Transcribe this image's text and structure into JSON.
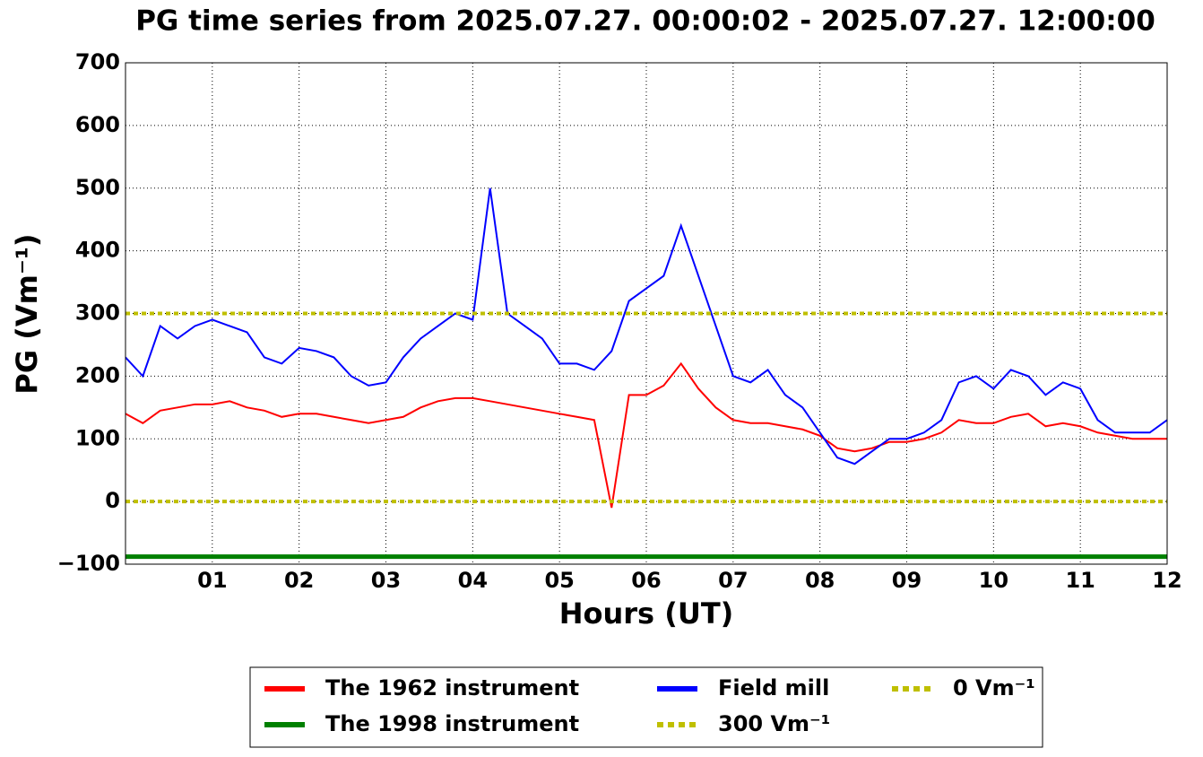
{
  "chart_data": {
    "type": "line",
    "title": "PG time series from 2025.07.27. 00:00:02 - 2025.07.27. 12:00:00",
    "x_label": "Hours (UT)",
    "y_label": "PG (Vm⁻¹)",
    "xlim": [
      0,
      12
    ],
    "xticks": [
      {
        "value": 1,
        "label": "01"
      },
      {
        "value": 2,
        "label": "02"
      },
      {
        "value": 3,
        "label": "03"
      },
      {
        "value": 4,
        "label": "04"
      },
      {
        "value": 5,
        "label": "05"
      },
      {
        "value": 6,
        "label": "06"
      },
      {
        "value": 7,
        "label": "07"
      },
      {
        "value": 8,
        "label": "08"
      },
      {
        "value": 9,
        "label": "09"
      },
      {
        "value": 10,
        "label": "10"
      },
      {
        "value": 11,
        "label": "11"
      },
      {
        "value": 12,
        "label": "12"
      }
    ],
    "ylim": [
      -100,
      700
    ],
    "yticks": [
      {
        "value": -100,
        "label": "−100"
      },
      0,
      100,
      200,
      300,
      400,
      500,
      600,
      700
    ],
    "grid": true,
    "legend": "lower center",
    "x": [
      0,
      0.2,
      0.4,
      0.6,
      0.8,
      1,
      1.2,
      1.4,
      1.6,
      1.8,
      2,
      2.2,
      2.4,
      2.6,
      2.8,
      3,
      3.2,
      3.4,
      3.6,
      3.8,
      4,
      4.2,
      4.4,
      4.6,
      4.8,
      5,
      5.2,
      5.4,
      5.6,
      5.8,
      6,
      6.2,
      6.4,
      6.6,
      6.8,
      7,
      7.2,
      7.4,
      7.6,
      7.8,
      8,
      8.2,
      8.4,
      8.6,
      8.8,
      9,
      9.2,
      9.4,
      9.6,
      9.8,
      10,
      10.2,
      10.4,
      10.6,
      10.8,
      11,
      11.2,
      11.4,
      11.6,
      11.8,
      12
    ],
    "series": [
      {
        "name": "The 1962 instrument",
        "color": "#ff0000",
        "linestyle": "solid",
        "values": [
          140,
          125,
          145,
          150,
          155,
          155,
          160,
          150,
          145,
          135,
          140,
          140,
          135,
          130,
          125,
          130,
          135,
          150,
          160,
          165,
          165,
          160,
          155,
          150,
          145,
          140,
          135,
          130,
          -10,
          170,
          170,
          185,
          220,
          180,
          150,
          130,
          125,
          125,
          120,
          115,
          105,
          85,
          80,
          85,
          95,
          95,
          100,
          110,
          130,
          125,
          125,
          135,
          140,
          120,
          125,
          120,
          110,
          105,
          100,
          100,
          100
        ]
      },
      {
        "name": "The 1998 instrument",
        "color": "#008000",
        "linestyle": "solid",
        "x": [
          0,
          12
        ],
        "values": [
          -88,
          -88
        ]
      },
      {
        "name": "Field mill",
        "color": "#0000ff",
        "linestyle": "solid",
        "values": [
          230,
          200,
          280,
          260,
          280,
          290,
          280,
          270,
          230,
          220,
          245,
          240,
          230,
          200,
          185,
          190,
          230,
          260,
          280,
          300,
          290,
          500,
          300,
          280,
          260,
          220,
          220,
          210,
          240,
          320,
          340,
          360,
          440,
          360,
          280,
          200,
          190,
          210,
          170,
          150,
          110,
          70,
          60,
          80,
          100,
          100,
          110,
          130,
          190,
          200,
          180,
          210,
          200,
          170,
          190,
          180,
          130,
          110,
          110,
          110,
          130
        ]
      },
      {
        "name": "300 Vm⁻¹",
        "color": "#bfbf00",
        "linestyle": "dotted",
        "x": [
          0,
          12
        ],
        "values": [
          300,
          300
        ]
      },
      {
        "name": "0 Vm⁻¹",
        "color": "#bfbf00",
        "linestyle": "dotted",
        "x": [
          0,
          12
        ],
        "values": [
          0,
          0
        ]
      }
    ]
  }
}
